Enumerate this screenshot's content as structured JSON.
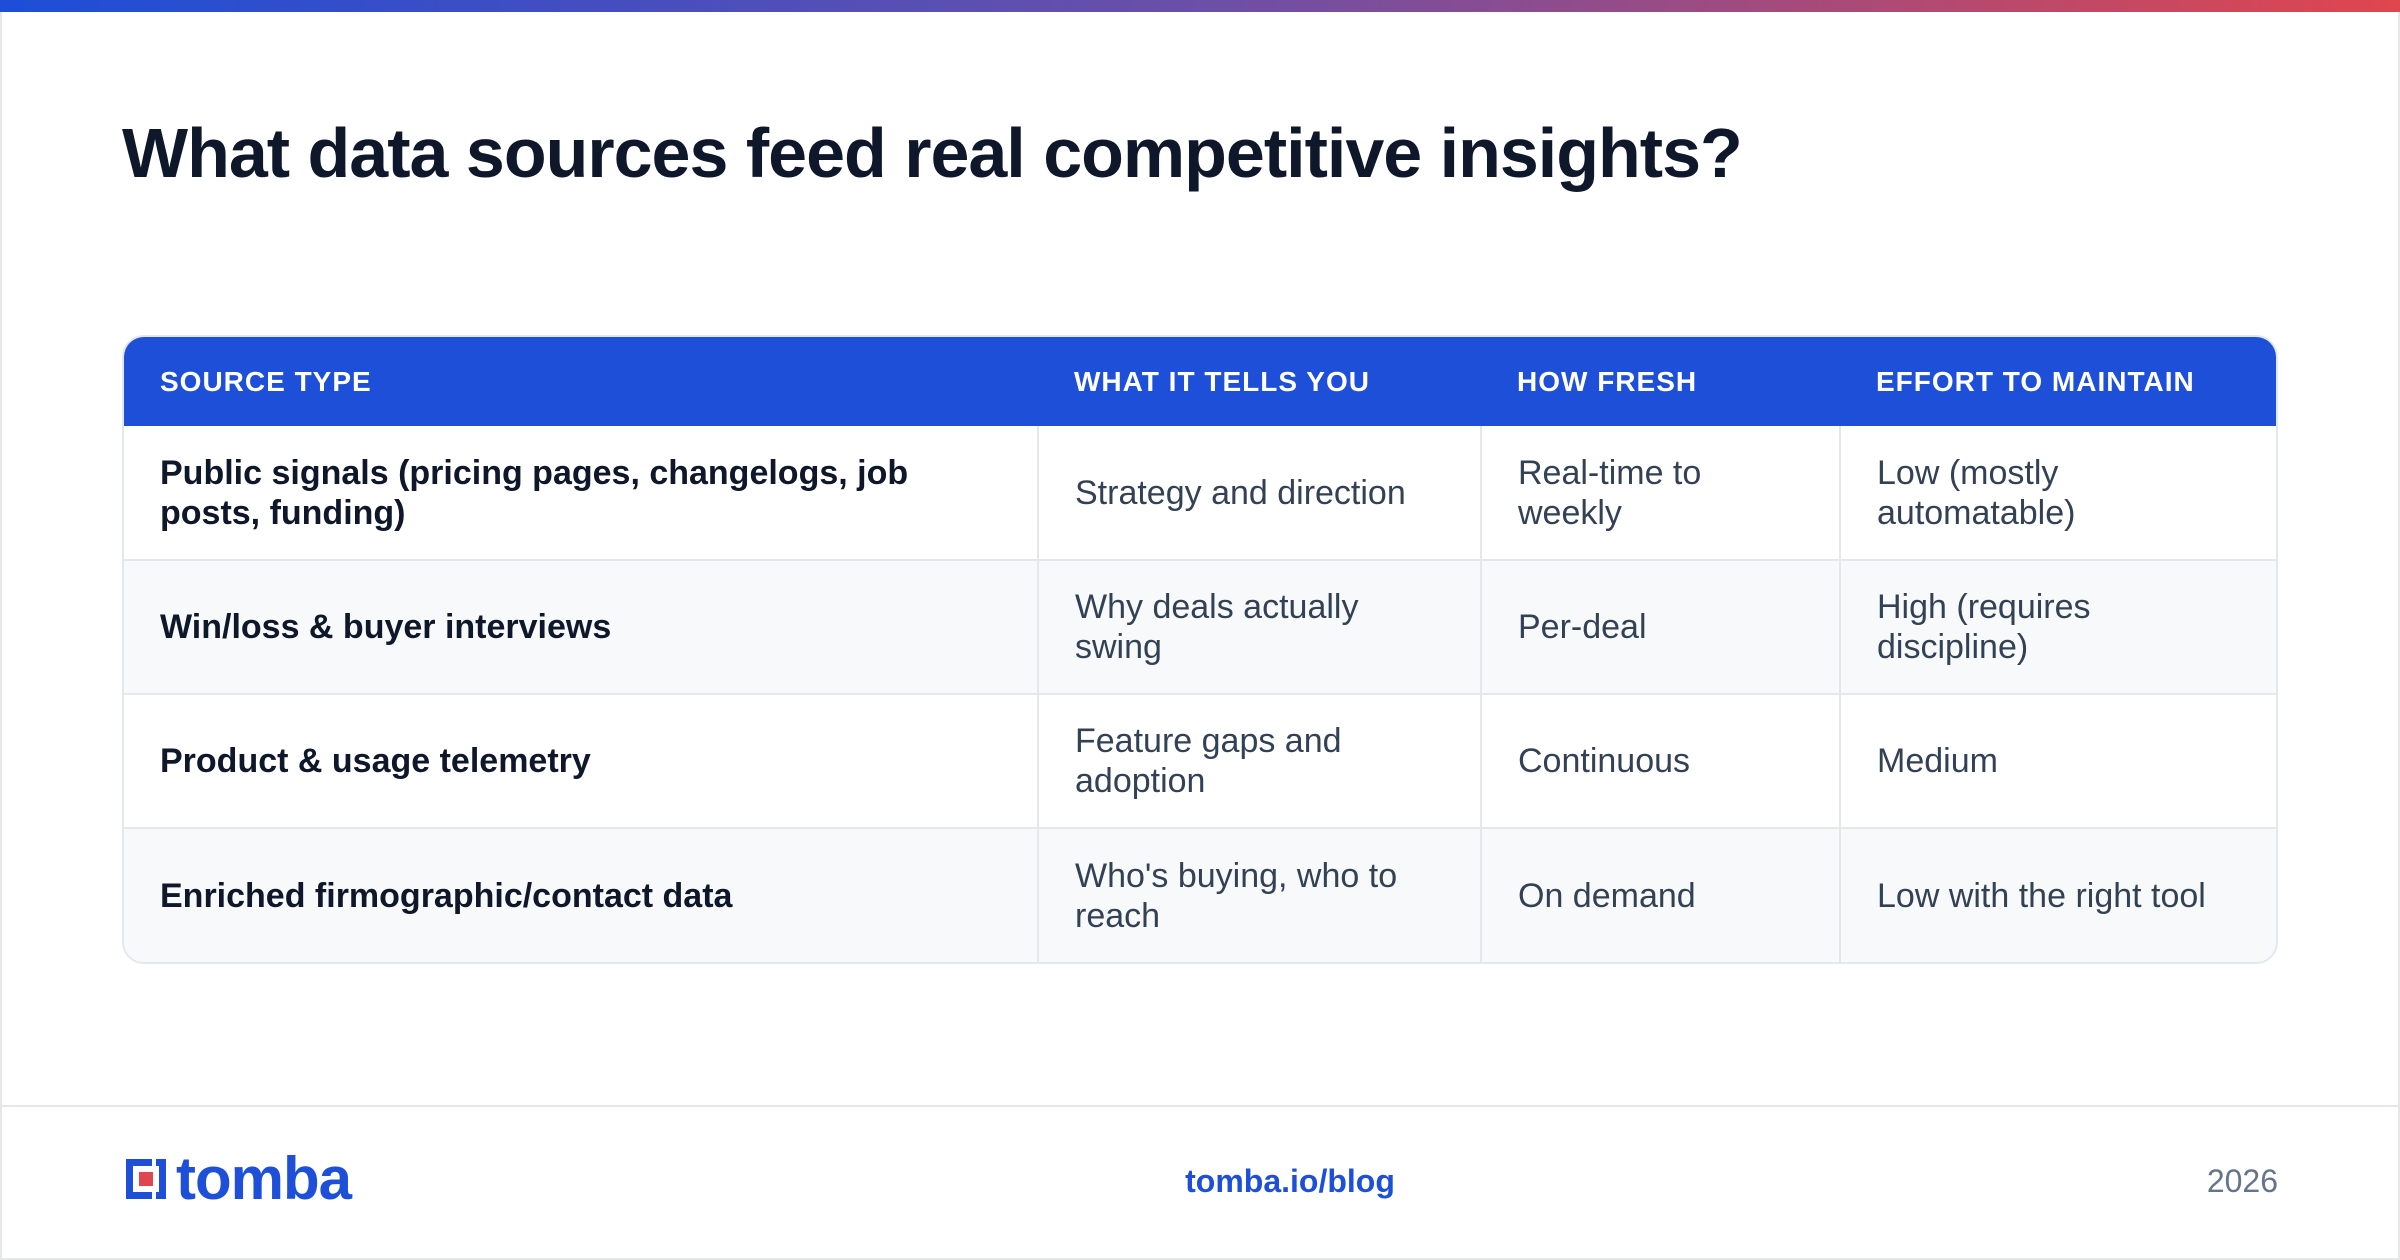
{
  "slide": {
    "title": "What data sources feed real competitive insights?",
    "accent_gradient": [
      "#1d4ed8",
      "#6b4fa8",
      "#e0464e"
    ]
  },
  "table": {
    "header_color": "#1d4fd8",
    "columns": [
      "SOURCE TYPE",
      "WHAT IT TELLS YOU",
      "HOW FRESH",
      "EFFORT TO MAINTAIN"
    ],
    "rows": [
      [
        "Public signals (pricing pages, changelogs, job posts, funding)",
        "Strategy and direction",
        "Real-time to weekly",
        "Low (mostly automatable)"
      ],
      [
        "Win/loss & buyer interviews",
        "Why deals actually swing",
        "Per-deal",
        "High (requires discipline)"
      ],
      [
        "Product & usage telemetry",
        "Feature gaps and adoption",
        "Continuous",
        "Medium"
      ],
      [
        "Enriched firmographic/contact data",
        "Who's buying, who to reach",
        "On demand",
        "Low with the right tool"
      ]
    ]
  },
  "footer": {
    "logo_text": "tomba",
    "logo_icon": "tomba-logo-icon",
    "brand_color": "#1d4fd8",
    "link": "tomba.io/blog",
    "year": "2026"
  }
}
